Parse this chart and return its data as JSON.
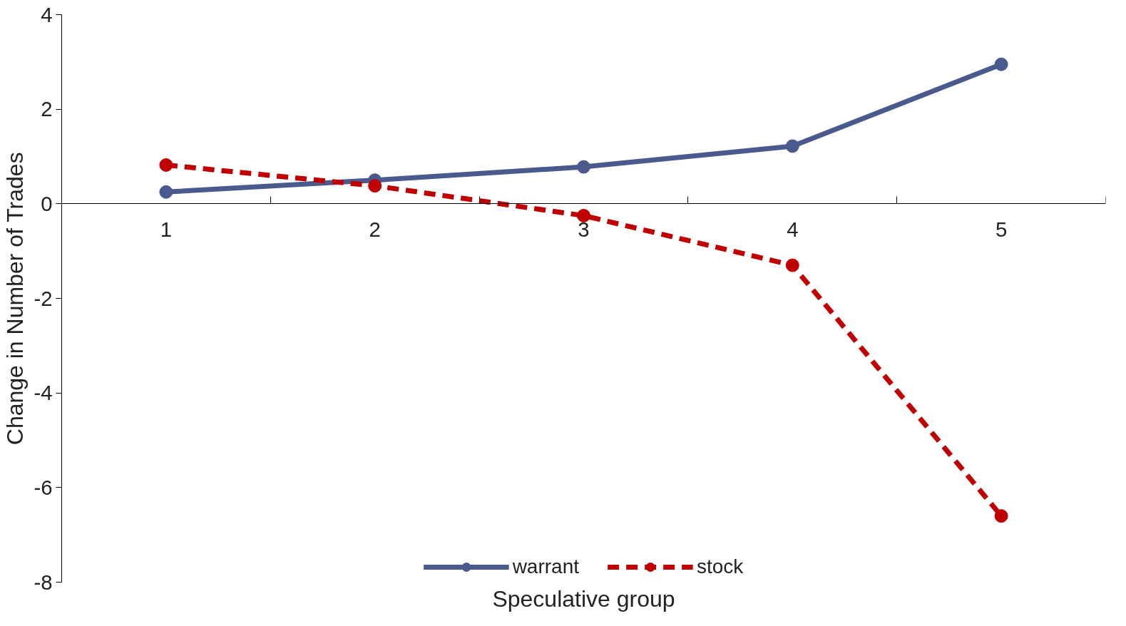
{
  "chart_data": {
    "type": "line",
    "xlabel": "Speculative group",
    "ylabel": "Change in Number of Trades",
    "categories": [
      "1",
      "2",
      "3",
      "4",
      "5"
    ],
    "series": [
      {
        "name": "warrant",
        "color": "#4a5a8c",
        "values": [
          0.25,
          0.5,
          0.78,
          1.22,
          2.95
        ],
        "line_style": "solid"
      },
      {
        "name": "stock",
        "color": "#c00000",
        "values": [
          0.82,
          0.38,
          -0.25,
          -1.3,
          -6.6
        ],
        "line_style": "dashed"
      }
    ],
    "ylim": [
      -8,
      4
    ],
    "yticks": [
      -8,
      -6,
      -4,
      -2,
      0,
      2,
      4
    ],
    "marker": "circle",
    "grid": false,
    "legend": "bottom"
  }
}
